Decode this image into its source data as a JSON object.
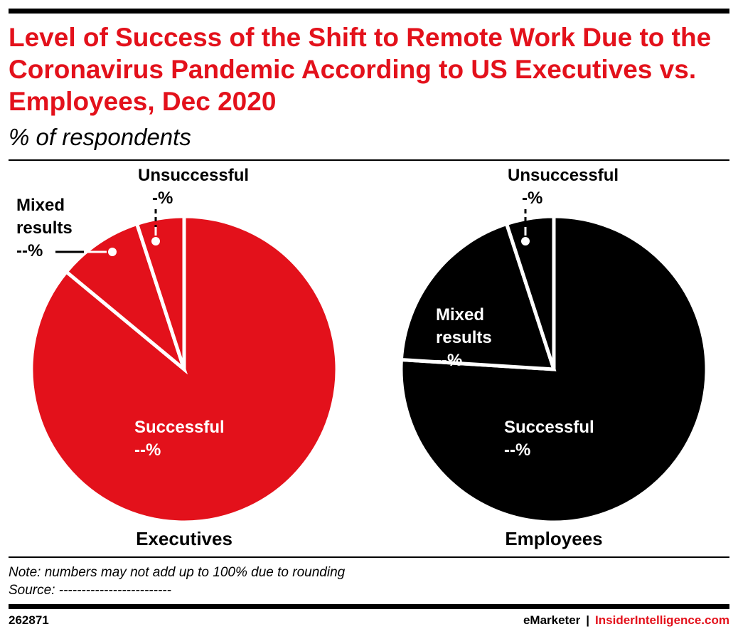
{
  "title": "Level of Success of the Shift to Remote Work Due to the Coronavirus Pandemic According to US Executives vs. Employees, Dec 2020",
  "subtitle": "% of respondents",
  "chart_data": [
    {
      "type": "pie",
      "name": "Executives",
      "color": "#e3111b",
      "label_color": "#ffffff",
      "slices": [
        {
          "label": "Successful",
          "value_text": "--%",
          "value": 86
        },
        {
          "label": "Mixed results",
          "value_text": "--%",
          "value": 9
        },
        {
          "label": "Unsuccessful",
          "value_text": "-%",
          "value": 5
        }
      ]
    },
    {
      "type": "pie",
      "name": "Employees",
      "color": "#000000",
      "label_color": "#ffffff",
      "slices": [
        {
          "label": "Successful",
          "value_text": "--%",
          "value": 76
        },
        {
          "label": "Mixed results",
          "value_text": "--%",
          "value": 19
        },
        {
          "label": "Unsuccessful",
          "value_text": "-%",
          "value": 5
        }
      ]
    }
  ],
  "footnote": {
    "note": "Note: numbers may not add up to 100% due to rounding",
    "source": "Source: -------------------------"
  },
  "footer": {
    "chart_id": "262871",
    "brand": "eMarketer",
    "separator": "|",
    "site": "InsiderIntelligence.com"
  },
  "colors": {
    "accent": "#e3111b",
    "text": "#000000"
  }
}
